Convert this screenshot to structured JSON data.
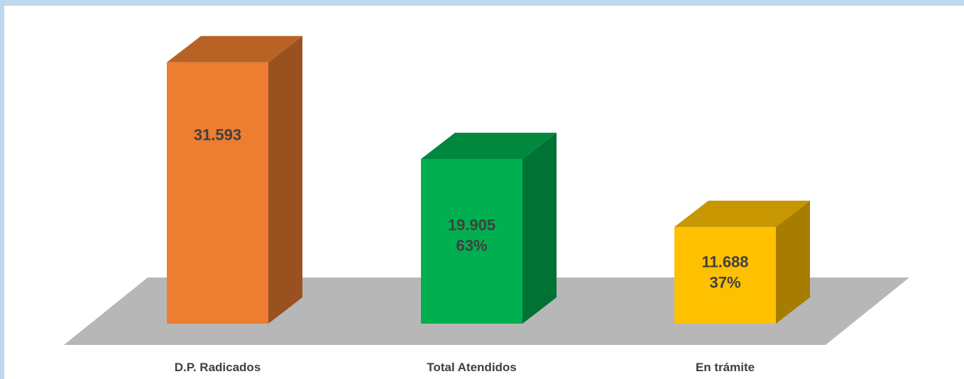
{
  "chart_data": {
    "type": "bar",
    "style": "3d-column",
    "categories": [
      "D.P. Radicados",
      "Total Atendidos",
      "En trámite"
    ],
    "values": [
      31593,
      19905,
      11688
    ],
    "value_labels": [
      "31.593",
      "19.905",
      "11.688"
    ],
    "percent_labels": [
      "",
      "63%",
      "37%"
    ],
    "colors": {
      "bars": [
        "#ed7d31",
        "#00b050",
        "#ffc000"
      ],
      "floor": "#b7b7b7",
      "label_text": "#404040",
      "border": "#bdd7ee"
    },
    "title": "",
    "xlabel": "",
    "ylabel": "",
    "ylim": [
      0,
      35000
    ],
    "grid": false,
    "legend": "none"
  }
}
